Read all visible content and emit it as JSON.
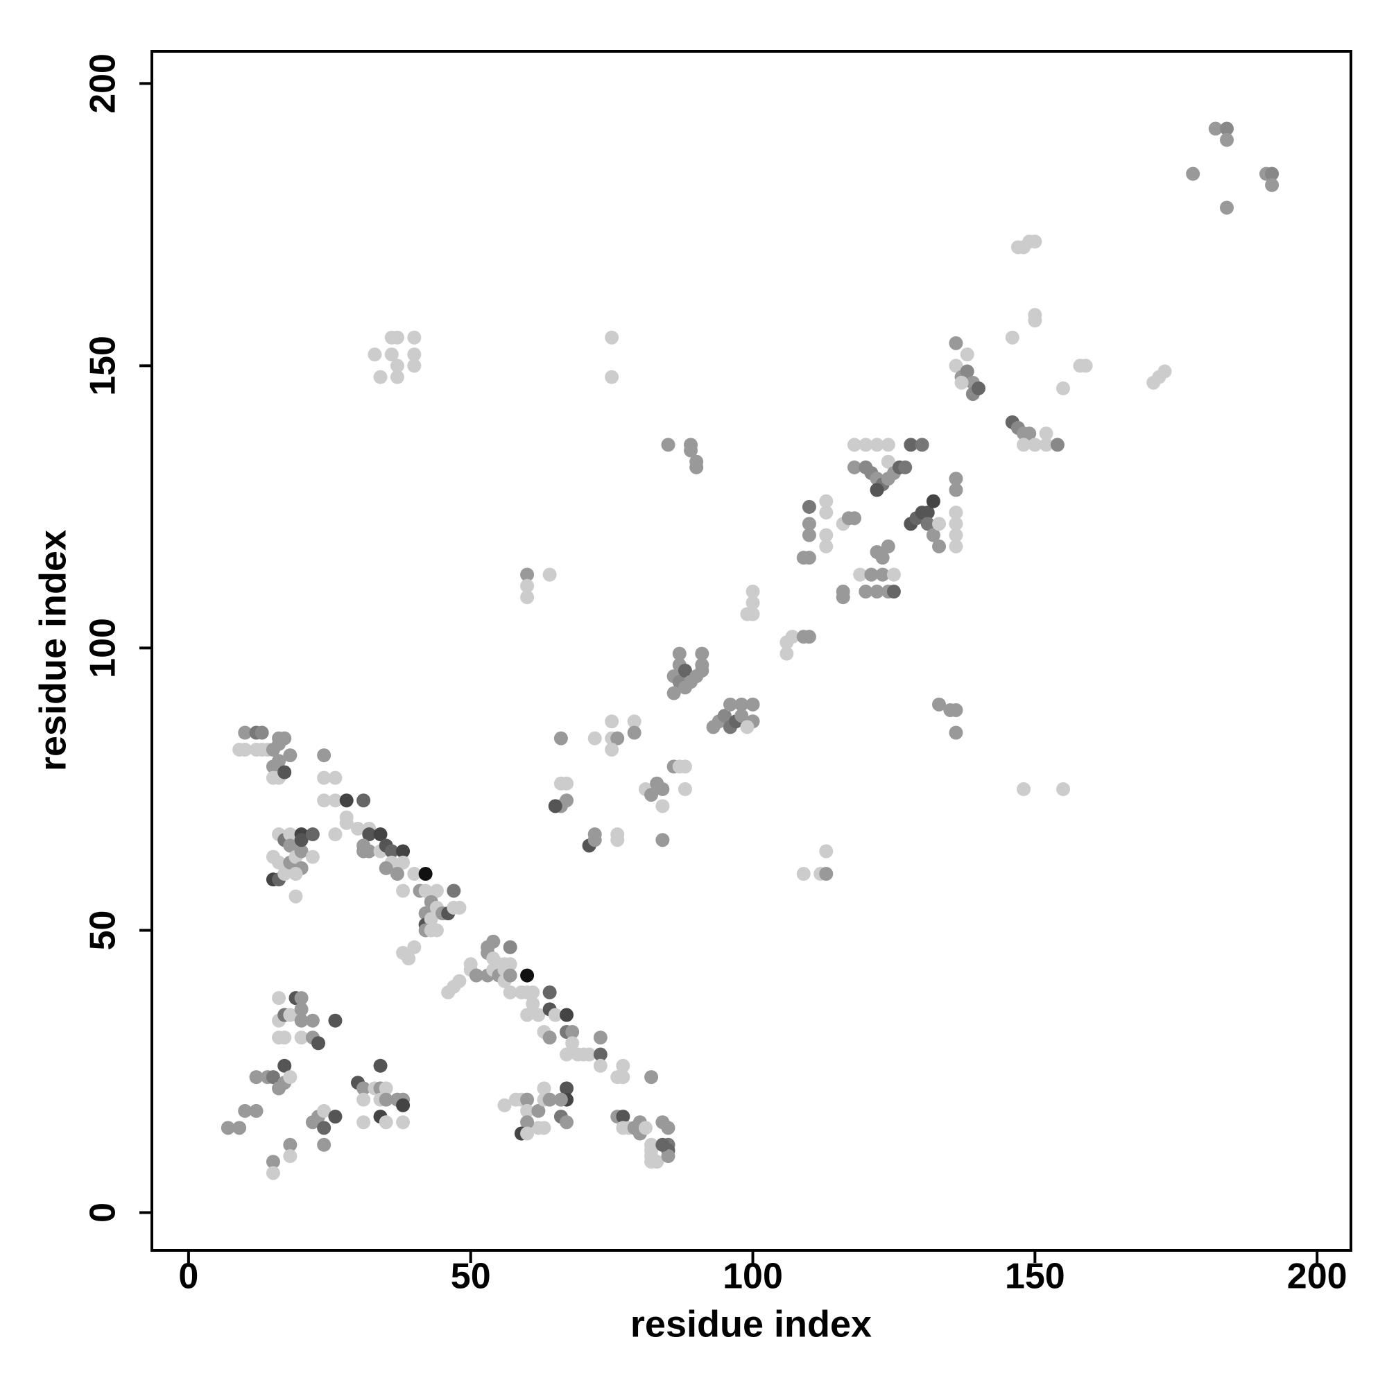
{
  "chart_data": {
    "type": "scatter",
    "xlabel": "residue index",
    "ylabel": "residue index",
    "xlim": [
      -6.5,
      206
    ],
    "ylim": [
      -6.7,
      205.7
    ],
    "xticks": [
      0,
      50,
      100,
      150,
      200
    ],
    "yticks": [
      0,
      50,
      100,
      150,
      200
    ],
    "x": [
      182,
      184,
      184,
      178,
      184,
      191,
      192,
      192,
      148,
      149,
      150,
      147,
      150,
      150,
      146,
      158,
      159,
      155,
      171,
      172,
      173,
      136,
      136,
      137,
      138,
      138,
      139,
      139,
      140,
      137,
      146,
      147,
      148,
      149,
      148,
      150,
      152,
      152,
      154,
      33,
      34,
      36,
      36,
      37,
      37,
      37,
      40,
      40,
      40,
      75,
      75,
      85,
      89,
      90,
      90,
      89,
      118,
      120,
      122,
      124,
      128,
      130,
      118,
      120,
      121,
      122,
      123,
      122,
      124,
      125,
      126,
      127,
      124,
      110,
      110,
      110,
      113,
      113,
      113,
      113,
      116,
      117,
      118,
      109,
      110,
      128,
      129,
      130,
      131,
      132,
      131,
      132,
      133,
      133,
      136,
      136,
      136,
      136,
      136,
      136,
      122,
      123,
      124,
      119,
      121,
      123,
      125,
      120,
      122,
      124,
      125,
      116,
      116,
      60,
      60,
      60,
      64,
      100,
      100,
      99,
      100,
      106,
      107,
      109,
      110,
      106,
      87,
      87,
      86,
      87,
      88,
      88,
      89,
      91,
      91,
      91,
      90,
      86,
      93,
      94,
      95,
      96,
      97,
      98,
      98,
      100,
      100,
      99,
      96,
      133,
      135,
      136,
      136,
      148,
      155,
      109,
      112,
      113,
      113,
      66,
      72,
      75,
      75,
      76,
      75,
      79,
      79,
      86,
      87,
      88,
      81,
      83,
      84,
      82,
      88,
      84,
      84,
      66,
      67,
      66,
      67,
      65,
      72,
      71,
      72,
      76,
      76,
      10,
      12,
      13,
      16,
      17,
      9,
      10,
      12,
      13,
      14,
      15,
      16,
      15,
      16,
      15,
      16,
      17,
      18,
      24,
      24,
      26,
      24,
      26,
      28,
      31,
      28,
      28,
      26,
      30,
      32,
      32,
      31,
      31,
      32,
      34,
      34,
      35,
      36,
      36,
      35,
      38,
      38,
      37,
      40,
      38,
      42,
      41,
      42,
      43,
      44,
      43,
      42,
      42,
      43,
      44,
      45,
      46,
      47,
      47,
      48,
      42,
      43,
      44,
      38,
      39,
      40,
      15,
      16,
      15,
      16,
      17,
      16,
      17,
      18,
      18,
      18,
      19,
      20,
      20,
      19,
      20,
      20,
      22,
      22,
      19,
      46,
      47,
      48,
      50,
      50,
      51,
      53,
      53,
      53,
      54,
      54,
      54,
      55,
      55,
      56,
      56,
      56,
      57,
      57,
      57,
      57,
      59,
      60,
      60,
      61,
      61,
      60,
      62,
      64,
      64,
      65,
      63,
      64,
      67,
      67,
      68,
      68,
      67,
      69,
      70,
      71,
      73,
      73,
      73,
      77,
      77,
      76,
      82,
      58,
      59,
      60,
      60,
      62,
      63,
      63,
      64,
      67,
      67,
      66,
      66,
      67,
      63,
      62,
      60,
      59,
      60,
      56,
      76,
      77,
      78,
      77,
      79,
      80,
      80,
      81,
      82,
      82,
      82,
      82,
      83,
      84,
      85,
      85,
      85,
      85,
      84,
      7,
      9,
      10,
      12,
      12,
      14,
      15,
      16,
      17,
      17,
      18,
      15,
      15,
      18,
      18,
      16,
      16,
      17,
      16,
      17,
      18,
      19,
      20,
      20,
      20,
      20,
      22,
      22,
      23,
      26,
      22,
      23,
      24,
      24,
      24,
      26,
      30,
      31,
      31,
      31,
      33,
      34,
      34,
      35,
      34,
      35,
      34,
      35,
      37,
      38,
      38,
      38
    ],
    "values": [
      192,
      192,
      190,
      184,
      178,
      184,
      184,
      182,
      171,
      172,
      172,
      171,
      158,
      159,
      155,
      150,
      150,
      146,
      147,
      148,
      149,
      154,
      150,
      148,
      152,
      149,
      147,
      145,
      146,
      147,
      140,
      139,
      138,
      138,
      136,
      136,
      138,
      136,
      136,
      152,
      148,
      155,
      152,
      155,
      150,
      148,
      155,
      152,
      150,
      155,
      148,
      136,
      136,
      133,
      132,
      135,
      136,
      136,
      136,
      136,
      136,
      136,
      132,
      132,
      131,
      130,
      129,
      128,
      133,
      131,
      132,
      132,
      130,
      125,
      122,
      120,
      126,
      124,
      120,
      118,
      122,
      123,
      123,
      116,
      116,
      122,
      123,
      124,
      124,
      126,
      122,
      120,
      118,
      122,
      130,
      128,
      124,
      122,
      120,
      118,
      117,
      116,
      118,
      113,
      113,
      113,
      113,
      110,
      110,
      110,
      110,
      110,
      109,
      113,
      111,
      109,
      113,
      110,
      108,
      106,
      106,
      101,
      102,
      102,
      102,
      99,
      99,
      97,
      95,
      94,
      96,
      93,
      94,
      99,
      97,
      96,
      95,
      92,
      86,
      87,
      88,
      86,
      87,
      88,
      90,
      90,
      87,
      86,
      90,
      90,
      89,
      89,
      85,
      75,
      75,
      60,
      60,
      60,
      64,
      84,
      84,
      87,
      84,
      84,
      82,
      87,
      85,
      79,
      79,
      79,
      75,
      76,
      75,
      74,
      75,
      72,
      66,
      76,
      76,
      72,
      73,
      72,
      67,
      65,
      66,
      67,
      66,
      85,
      85,
      85,
      84,
      84,
      82,
      82,
      82,
      82,
      82,
      82,
      83,
      79,
      80,
      77,
      77,
      78,
      81,
      81,
      77,
      77,
      73,
      73,
      73,
      73,
      70,
      69,
      67,
      68,
      68,
      67,
      65,
      64,
      64,
      67,
      64,
      65,
      64,
      62,
      61,
      64,
      62,
      60,
      60,
      57,
      60,
      57,
      57,
      56,
      57,
      55,
      53,
      51,
      52,
      54,
      53,
      53,
      57,
      54,
      54,
      50,
      50,
      50,
      46,
      45,
      47,
      59,
      59,
      63,
      62,
      60,
      67,
      66,
      67,
      65,
      62,
      63,
      64,
      61,
      60,
      67,
      66,
      67,
      63,
      56,
      39,
      40,
      41,
      43,
      44,
      42,
      42,
      46,
      47,
      48,
      45,
      43,
      44,
      42,
      43,
      41,
      44,
      47,
      44,
      42,
      39,
      39,
      42,
      39,
      39,
      37,
      35,
      35,
      39,
      36,
      35,
      32,
      31,
      35,
      32,
      32,
      30,
      28,
      28,
      28,
      28,
      31,
      28,
      26,
      26,
      24,
      24,
      24,
      20,
      20,
      20,
      18,
      18,
      20,
      22,
      20,
      22,
      20,
      20,
      17,
      16,
      15,
      15,
      16,
      14,
      14,
      19,
      17,
      17,
      15,
      15,
      15,
      16,
      14,
      15,
      12,
      11,
      10,
      9,
      9,
      16,
      15,
      12,
      11,
      10,
      12,
      15,
      15,
      18,
      18,
      24,
      24,
      24,
      22,
      23,
      26,
      24,
      9,
      7,
      12,
      10,
      38,
      34,
      35,
      31,
      31,
      35,
      38,
      38,
      36,
      34,
      31,
      34,
      31,
      30,
      34,
      16,
      17,
      18,
      15,
      12,
      17,
      23,
      22,
      20,
      16,
      22,
      26,
      22,
      22,
      20,
      20,
      17,
      16,
      20,
      20,
      19,
      16
    ],
    "colors": [
      "#999",
      "#888",
      "#999",
      "#999",
      "#999",
      "#999",
      "#888",
      "#999",
      "#ccc",
      "#ccc",
      "#ccc",
      "#ccc",
      "#ccc",
      "#ccc",
      "#ccc",
      "#ccc",
      "#ccc",
      "#ccc",
      "#ccc",
      "#ccc",
      "#ccc",
      "#999",
      "#ccc",
      "#999",
      "#ccc",
      "#888",
      "#999",
      "#888",
      "#666",
      "#ccc",
      "#666",
      "#888",
      "#999",
      "#999",
      "#ccc",
      "#ccc",
      "#ccc",
      "#ccc",
      "#888",
      "#ccc",
      "#ccc",
      "#ccc",
      "#ccc",
      "#ccc",
      "#ccc",
      "#ccc",
      "#ccc",
      "#ccc",
      "#ccc",
      "#ccc",
      "#ccc",
      "#999",
      "#999",
      "#999",
      "#999",
      "#999",
      "#ccc",
      "#ccc",
      "#ccc",
      "#ccc",
      "#666",
      "#777",
      "#999",
      "#888",
      "#888",
      "#999",
      "#777",
      "#555",
      "#ccc",
      "#999",
      "#666",
      "#777",
      "#999",
      "#777",
      "#999",
      "#999",
      "#ccc",
      "#ccc",
      "#ccc",
      "#ccc",
      "#ccc",
      "#999",
      "#999",
      "#999",
      "#999",
      "#555",
      "#666",
      "#555",
      "#555",
      "#444",
      "#777",
      "#999",
      "#999",
      "#ccc",
      "#999",
      "#999",
      "#ccc",
      "#ccc",
      "#ccc",
      "#ccc",
      "#999",
      "#999",
      "#999",
      "#ccc",
      "#999",
      "#999",
      "#ccc",
      "#999",
      "#999",
      "#999",
      "#666",
      "#999",
      "#999",
      "#999",
      "#ccc",
      "#ccc",
      "#ccc",
      "#ccc",
      "#ccc",
      "#ccc",
      "#ccc",
      "#ccc",
      "#ccc",
      "#999",
      "#999",
      "#ccc",
      "#999",
      "#999",
      "#999",
      "#888",
      "#666",
      "#999",
      "#999",
      "#999",
      "#999",
      "#999",
      "#999",
      "#999",
      "#999",
      "#999",
      "#888",
      "#777",
      "#666",
      "#999",
      "#999",
      "#999",
      "#999",
      "#ccc",
      "#999",
      "#999",
      "#999",
      "#999",
      "#999",
      "#ccc",
      "#ccc",
      "#ccc",
      "#ccc",
      "#999",
      "#ccc",
      "#999",
      "#ccc",
      "#ccc",
      "#ccc",
      "#999",
      "#ccc",
      "#ccc",
      "#999",
      "#999",
      "#ccc",
      "#ccc",
      "#ccc",
      "#999",
      "#999",
      "#999",
      "#ccc",
      "#ccc",
      "#999",
      "#ccc",
      "#ccc",
      "#999",
      "#999",
      "#555",
      "#999",
      "#555",
      "#999",
      "#ccc",
      "#ccc",
      "#999",
      "#777",
      "#888",
      "#999",
      "#999",
      "#ccc",
      "#ccc",
      "#ccc",
      "#ccc",
      "#ccc",
      "#999",
      "#999",
      "#999",
      "#999",
      "#ccc",
      "#ccc",
      "#555",
      "#999",
      "#999",
      "#ccc",
      "#ccc",
      "#ccc",
      "#ccc",
      "#444",
      "#666",
      "#ccc",
      "#ccc",
      "#ccc",
      "#ccc",
      "#ccc",
      "#555",
      "#999",
      "#999",
      "#999",
      "#444",
      "#ccc",
      "#555",
      "#666",
      "#ccc",
      "#999",
      "#444",
      "#ccc",
      "#999",
      "#ccc",
      "#ccc",
      "#111",
      "#999",
      "#ccc",
      "#ccc",
      "#ccc",
      "#999",
      "#999",
      "#555",
      "#ccc",
      "#ccc",
      "#999",
      "#555",
      "#777",
      "#ccc",
      "#ccc",
      "#999",
      "#ccc",
      "#ccc",
      "#ccc",
      "#ccc",
      "#ccc",
      "#444",
      "#666",
      "#ccc",
      "#ccc",
      "#ccc",
      "#ccc",
      "#777",
      "#ccc",
      "#999",
      "#999",
      "#ccc",
      "#999",
      "#999",
      "#ccc",
      "#444",
      "#555",
      "#666",
      "#ccc",
      "#ccc",
      "#ccc",
      "#ccc",
      "#ccc",
      "#ccc",
      "#ccc",
      "#999",
      "#999",
      "#999",
      "#999",
      "#999",
      "#ccc",
      "#ccc",
      "#ccc",
      "#999",
      "#ccc",
      "#ccc",
      "#ccc",
      "#888",
      "#ccc",
      "#999",
      "#ccc",
      "#ccc",
      "#111",
      "#ccc",
      "#ccc",
      "#ccc",
      "#ccc",
      "#ccc",
      "#666",
      "#555",
      "#ccc",
      "#ccc",
      "#999",
      "#444",
      "#777",
      "#999",
      "#ccc",
      "#ccc",
      "#ccc",
      "#ccc",
      "#ccc",
      "#999",
      "#666",
      "#ccc",
      "#ccc",
      "#ccc",
      "#ccc",
      "#999",
      "#ccc",
      "#ccc",
      "#999",
      "#ccc",
      "#999",
      "#ccc",
      "#ccc",
      "#999",
      "#555",
      "#444",
      "#999",
      "#777",
      "#999",
      "#ccc",
      "#ccc",
      "#999",
      "#444",
      "#ccc",
      "#ccc",
      "#999",
      "#555",
      "#ccc",
      "#ccc",
      "#999",
      "#999",
      "#999",
      "#ccc",
      "#ccc",
      "#ccc",
      "#ccc",
      "#ccc",
      "#ccc",
      "#999",
      "#999",
      "#777",
      "#666",
      "#999",
      "#666",
      "#999",
      "#999",
      "#999",
      "#999",
      "#999",
      "#999",
      "#777",
      "#999",
      "#999",
      "#555",
      "#ccc",
      "#999",
      "#ccc",
      "#999",
      "#ccc",
      "#ccc",
      "#ccc",
      "#777",
      "#ccc",
      "#ccc",
      "#ccc",
      "#555",
      "#999",
      "#999",
      "#999",
      "#ccc",
      "#999",
      "#999",
      "#555",
      "#555",
      "#999",
      "#999",
      "#ccc",
      "#666",
      "#999",
      "#555",
      "#555",
      "#999",
      "#ccc",
      "#ccc",
      "#ccc",
      "#555",
      "#999",
      "#ccc",
      "#ccc",
      "#999",
      "#444",
      "#ccc",
      "#999",
      "#999",
      "#444",
      "#ccc"
    ]
  }
}
